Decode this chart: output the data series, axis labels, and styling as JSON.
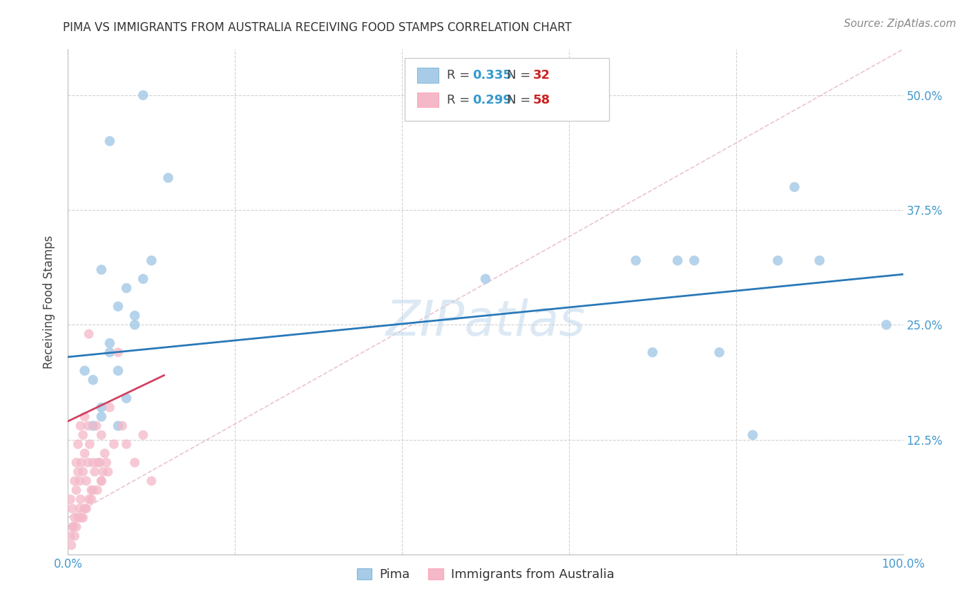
{
  "title": "PIMA VS IMMIGRANTS FROM AUSTRALIA RECEIVING FOOD STAMPS CORRELATION CHART",
  "source": "Source: ZipAtlas.com",
  "ylabel": "Receiving Food Stamps",
  "xlim": [
    0.0,
    1.0
  ],
  "ylim": [
    0.0,
    0.55
  ],
  "xticks": [
    0.0,
    0.2,
    0.4,
    0.6,
    0.8,
    1.0
  ],
  "xtick_labels": [
    "0.0%",
    "",
    "",
    "",
    "",
    "100.0%"
  ],
  "yticks": [
    0.0,
    0.125,
    0.25,
    0.375,
    0.5
  ],
  "ytick_labels_right": [
    "",
    "12.5%",
    "25.0%",
    "37.5%",
    "50.0%"
  ],
  "legend_label1": "Pima",
  "legend_label2": "Immigrants from Australia",
  "R1": "0.335",
  "N1": "32",
  "R2": "0.299",
  "N2": "58",
  "color_blue": "#a8cce8",
  "color_pink": "#f4b8c8",
  "line_color_blue": "#2878b8",
  "line_color_pink": "#d04060",
  "diagonal_color": "#e8b8c8",
  "watermark": "ZIPatlas",
  "pima_x": [
    0.02,
    0.04,
    0.05,
    0.04,
    0.05,
    0.06,
    0.06,
    0.07,
    0.08,
    0.05,
    0.08,
    0.09,
    0.1,
    0.12,
    0.03,
    0.03,
    0.04,
    0.06,
    0.07,
    0.09,
    0.5,
    0.62,
    0.68,
    0.7,
    0.73,
    0.75,
    0.78,
    0.82,
    0.85,
    0.87,
    0.9,
    0.98
  ],
  "pima_y": [
    0.2,
    0.31,
    0.45,
    0.16,
    0.23,
    0.27,
    0.14,
    0.29,
    0.26,
    0.22,
    0.25,
    0.3,
    0.32,
    0.41,
    0.19,
    0.14,
    0.15,
    0.2,
    0.17,
    0.5,
    0.3,
    0.5,
    0.32,
    0.22,
    0.32,
    0.32,
    0.22,
    0.13,
    0.32,
    0.4,
    0.32,
    0.25
  ],
  "aus_x": [
    0.003,
    0.005,
    0.006,
    0.008,
    0.008,
    0.01,
    0.01,
    0.012,
    0.012,
    0.014,
    0.015,
    0.015,
    0.016,
    0.018,
    0.018,
    0.02,
    0.02,
    0.022,
    0.024,
    0.024,
    0.025,
    0.026,
    0.028,
    0.03,
    0.032,
    0.034,
    0.036,
    0.038,
    0.04,
    0.04,
    0.042,
    0.044,
    0.046,
    0.048,
    0.05,
    0.055,
    0.06,
    0.065,
    0.07,
    0.08,
    0.09,
    0.1,
    0.003,
    0.004,
    0.006,
    0.008,
    0.01,
    0.012,
    0.014,
    0.016,
    0.018,
    0.02,
    0.022,
    0.025,
    0.028,
    0.03,
    0.035,
    0.04
  ],
  "aus_y": [
    0.06,
    0.05,
    0.03,
    0.04,
    0.08,
    0.07,
    0.1,
    0.09,
    0.12,
    0.08,
    0.06,
    0.14,
    0.1,
    0.09,
    0.13,
    0.11,
    0.15,
    0.08,
    0.1,
    0.14,
    0.24,
    0.12,
    0.07,
    0.1,
    0.09,
    0.14,
    0.1,
    0.1,
    0.08,
    0.13,
    0.09,
    0.11,
    0.1,
    0.09,
    0.16,
    0.12,
    0.22,
    0.14,
    0.12,
    0.1,
    0.13,
    0.08,
    0.02,
    0.01,
    0.03,
    0.02,
    0.03,
    0.04,
    0.05,
    0.04,
    0.04,
    0.05,
    0.05,
    0.06,
    0.06,
    0.07,
    0.07,
    0.08
  ],
  "blue_line_x0": 0.0,
  "blue_line_x1": 1.0,
  "blue_line_y0": 0.215,
  "blue_line_y1": 0.305,
  "pink_line_x0": 0.0,
  "pink_line_x1": 0.115,
  "pink_line_y0": 0.145,
  "pink_line_y1": 0.195,
  "diag_line_x0": 0.0,
  "diag_line_x1": 1.0,
  "diag_line_y0": 0.04,
  "diag_line_y1": 0.55
}
